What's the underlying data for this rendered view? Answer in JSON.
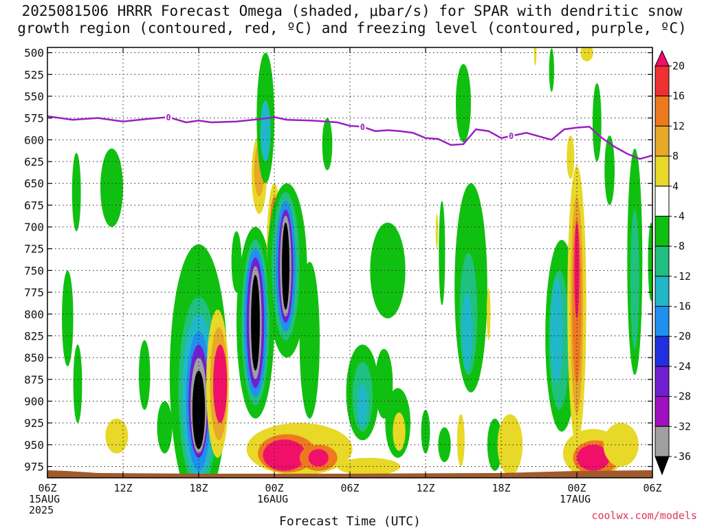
{
  "title_lines": [
    "2025081506 HRRR Forecast Omega (shaded, μbar/s) for SPAR with dendritic snow",
    "growth region (contoured, red, ºC) and freezing level (contoured, purple, ºC)"
  ],
  "credit": "coolwx.com/models",
  "chart_data": {
    "type": "heatmap",
    "title": "2025081506 HRRR Forecast Omega (shaded, μbar/s) for SPAR with dendritic snow growth region (contoured, red, ºC) and freezing level (contoured, purple, ºC)",
    "xlabel": "Forecast Time (UTC)",
    "ylabel": "",
    "x_range_hours": [
      0,
      48
    ],
    "y_range_hPa": [
      988,
      494
    ],
    "y_ticks": [
      500,
      525,
      550,
      575,
      600,
      625,
      650,
      675,
      700,
      725,
      750,
      775,
      800,
      825,
      850,
      875,
      900,
      925,
      950,
      975
    ],
    "x_ticks": [
      {
        "hour": 0,
        "lines": [
          "06Z",
          "15AUG",
          "2025"
        ]
      },
      {
        "hour": 6,
        "lines": [
          "12Z"
        ]
      },
      {
        "hour": 12,
        "lines": [
          "18Z"
        ]
      },
      {
        "hour": 18,
        "lines": [
          "00Z",
          "16AUG"
        ]
      },
      {
        "hour": 24,
        "lines": [
          "06Z"
        ]
      },
      {
        "hour": 30,
        "lines": [
          "12Z"
        ]
      },
      {
        "hour": 36,
        "lines": [
          "18Z"
        ]
      },
      {
        "hour": 42,
        "lines": [
          "00Z",
          "17AUG"
        ]
      },
      {
        "hour": 48,
        "lines": [
          "06Z"
        ]
      }
    ],
    "grid": true,
    "colorbar": {
      "labels": [
        20,
        16,
        12,
        8,
        4,
        -4,
        -8,
        -12,
        -16,
        -20,
        -24,
        -28,
        -32,
        -36
      ],
      "colors": [
        "#f0106a",
        "#f03030",
        "#ee7a20",
        "#e8a828",
        "#e8d828",
        "#ffffff",
        "#10c010",
        "#20c080",
        "#20b8c8",
        "#2090f0",
        "#2030e0",
        "#7020d0",
        "#a010c0",
        "#a0a0a0",
        "#000000"
      ]
    },
    "freezing_level": {
      "label": "0",
      "color": "#9a1fc0",
      "points": [
        [
          0,
          573
        ],
        [
          2,
          577
        ],
        [
          4,
          575
        ],
        [
          6,
          579
        ],
        [
          8,
          576
        ],
        [
          9.6,
          574
        ],
        [
          11,
          580
        ],
        [
          12,
          578
        ],
        [
          13,
          580
        ],
        [
          15,
          579
        ],
        [
          17,
          576
        ],
        [
          18,
          574
        ],
        [
          19,
          577
        ],
        [
          21,
          578
        ],
        [
          23,
          580
        ],
        [
          24,
          584
        ],
        [
          25,
          585
        ],
        [
          26,
          590
        ],
        [
          27,
          589
        ],
        [
          28,
          590
        ],
        [
          29,
          592
        ],
        [
          30,
          598
        ],
        [
          31,
          599
        ],
        [
          32,
          606
        ],
        [
          33,
          605
        ],
        [
          34,
          588
        ],
        [
          35,
          590
        ],
        [
          36,
          598
        ],
        [
          37,
          595
        ],
        [
          38,
          592
        ],
        [
          39,
          596
        ],
        [
          40,
          600
        ],
        [
          41,
          588
        ],
        [
          42,
          586
        ],
        [
          43,
          585
        ],
        [
          44,
          598
        ],
        [
          45,
          608
        ],
        [
          46,
          616
        ],
        [
          47,
          622
        ],
        [
          48,
          618
        ]
      ],
      "label_hours": [
        9.6,
        25,
        36.8
      ]
    },
    "surface_color": "#a05a2c",
    "omega_features": [
      {
        "level": -4,
        "t": 2.3,
        "p": 660,
        "rt": 0.35,
        "rp": 45
      },
      {
        "level": -4,
        "t": 1.6,
        "p": 805,
        "rt": 0.45,
        "rp": 55
      },
      {
        "level": -4,
        "t": 2.4,
        "p": 880,
        "rt": 0.35,
        "rp": 45
      },
      {
        "level": -4,
        "t": 5.1,
        "p": 655,
        "rt": 0.9,
        "rp": 45
      },
      {
        "level": 4,
        "t": 5.5,
        "p": 940,
        "rt": 0.9,
        "rp": 20
      },
      {
        "level": -4,
        "t": 7.7,
        "p": 870,
        "rt": 0.45,
        "rp": 40
      },
      {
        "level": -4,
        "t": 9.3,
        "p": 930,
        "rt": 0.6,
        "rp": 30
      },
      {
        "level": -4,
        "t": 12.0,
        "p": 870,
        "rt": 2.3,
        "rp": 150
      },
      {
        "level": -8,
        "t": 12.0,
        "p": 890,
        "rt": 1.6,
        "rp": 110
      },
      {
        "level": -12,
        "t": 12.0,
        "p": 895,
        "rt": 1.3,
        "rp": 95
      },
      {
        "level": -16,
        "t": 12.0,
        "p": 900,
        "rt": 1.0,
        "rp": 80
      },
      {
        "level": -24,
        "t": 12.0,
        "p": 900,
        "rt": 0.8,
        "rp": 65
      },
      {
        "level": -32,
        "t": 12.0,
        "p": 905,
        "rt": 0.65,
        "rp": 55
      },
      {
        "level": -36,
        "t": 12.0,
        "p": 910,
        "rt": 0.5,
        "rp": 45
      },
      {
        "level": 4,
        "t": 13.5,
        "p": 880,
        "rt": 0.9,
        "rp": 85
      },
      {
        "level": 8,
        "t": 13.6,
        "p": 880,
        "rt": 0.7,
        "rp": 65
      },
      {
        "level": 20,
        "t": 13.7,
        "p": 880,
        "rt": 0.55,
        "rp": 45
      },
      {
        "level": -4,
        "t": 15.0,
        "p": 740,
        "rt": 0.4,
        "rp": 35
      },
      {
        "level": -4,
        "t": 16.5,
        "p": 810,
        "rt": 1.5,
        "rp": 110
      },
      {
        "level": -8,
        "t": 16.5,
        "p": 810,
        "rt": 1.1,
        "rp": 95
      },
      {
        "level": -16,
        "t": 16.5,
        "p": 810,
        "rt": 0.9,
        "rp": 85
      },
      {
        "level": -24,
        "t": 16.5,
        "p": 810,
        "rt": 0.7,
        "rp": 75
      },
      {
        "level": -32,
        "t": 16.5,
        "p": 810,
        "rt": 0.5,
        "rp": 65
      },
      {
        "level": -36,
        "t": 16.5,
        "p": 810,
        "rt": 0.35,
        "rp": 55
      },
      {
        "level": 4,
        "t": 16.8,
        "p": 640,
        "rt": 0.6,
        "rp": 45
      },
      {
        "level": 8,
        "t": 16.8,
        "p": 635,
        "rt": 0.4,
        "rp": 30
      },
      {
        "level": -4,
        "t": 17.3,
        "p": 575,
        "rt": 0.7,
        "rp": 75
      },
      {
        "level": -12,
        "t": 17.3,
        "p": 590,
        "rt": 0.4,
        "rp": 35
      },
      {
        "level": 4,
        "t": 18.0,
        "p": 725,
        "rt": 0.6,
        "rp": 75
      },
      {
        "level": 12,
        "t": 18.0,
        "p": 720,
        "rt": 0.4,
        "rp": 55
      },
      {
        "level": 20,
        "t": 18.0,
        "p": 720,
        "rt": 0.25,
        "rp": 40
      },
      {
        "level": -4,
        "t": 19.0,
        "p": 750,
        "rt": 1.6,
        "rp": 100
      },
      {
        "level": -8,
        "t": 18.9,
        "p": 745,
        "rt": 1.1,
        "rp": 85
      },
      {
        "level": -16,
        "t": 18.9,
        "p": 745,
        "rt": 0.8,
        "rp": 75
      },
      {
        "level": -24,
        "t": 18.9,
        "p": 745,
        "rt": 0.6,
        "rp": 65
      },
      {
        "level": -32,
        "t": 18.9,
        "p": 745,
        "rt": 0.45,
        "rp": 58
      },
      {
        "level": -36,
        "t": 18.9,
        "p": 745,
        "rt": 0.3,
        "rp": 50
      },
      {
        "level": -4,
        "t": 20.8,
        "p": 830,
        "rt": 0.8,
        "rp": 90
      },
      {
        "level": 4,
        "t": 20.0,
        "p": 955,
        "rt": 4.2,
        "rp": 30
      },
      {
        "level": 12,
        "t": 19.0,
        "p": 960,
        "rt": 2.3,
        "rp": 22
      },
      {
        "level": 20,
        "t": 18.8,
        "p": 962,
        "rt": 1.7,
        "rp": 18
      },
      {
        "level": 12,
        "t": 21.5,
        "p": 965,
        "rt": 1.5,
        "rp": 15
      },
      {
        "level": 20,
        "t": 21.5,
        "p": 965,
        "rt": 0.8,
        "rp": 10
      },
      {
        "level": 4,
        "t": 25.5,
        "p": 975,
        "rt": 2.5,
        "rp": 10
      },
      {
        "level": -4,
        "t": 22.2,
        "p": 605,
        "rt": 0.4,
        "rp": 30
      },
      {
        "level": -4,
        "t": 25.0,
        "p": 890,
        "rt": 1.3,
        "rp": 55
      },
      {
        "level": -8,
        "t": 25.0,
        "p": 895,
        "rt": 0.8,
        "rp": 40
      },
      {
        "level": -12,
        "t": 25.0,
        "p": 905,
        "rt": 0.4,
        "rp": 25
      },
      {
        "level": -4,
        "t": 27.0,
        "p": 750,
        "rt": 1.4,
        "rp": 55
      },
      {
        "level": -4,
        "t": 26.7,
        "p": 880,
        "rt": 0.7,
        "rp": 40
      },
      {
        "level": -4,
        "t": 27.8,
        "p": 925,
        "rt": 1.0,
        "rp": 40
      },
      {
        "level": 4,
        "t": 27.9,
        "p": 935,
        "rt": 0.5,
        "rp": 22
      },
      {
        "level": -4,
        "t": 30.0,
        "p": 935,
        "rt": 0.35,
        "rp": 25
      },
      {
        "level": 4,
        "t": 30.9,
        "p": 705,
        "rt": 0.1,
        "rp": 20
      },
      {
        "level": -4,
        "t": 31.3,
        "p": 730,
        "rt": 0.25,
        "rp": 60
      },
      {
        "level": -4,
        "t": 31.5,
        "p": 950,
        "rt": 0.5,
        "rp": 20
      },
      {
        "level": -4,
        "t": 33.0,
        "p": 558,
        "rt": 0.6,
        "rp": 45
      },
      {
        "level": -4,
        "t": 33.6,
        "p": 770,
        "rt": 1.3,
        "rp": 120
      },
      {
        "level": -8,
        "t": 33.4,
        "p": 800,
        "rt": 0.7,
        "rp": 70
      },
      {
        "level": -12,
        "t": 33.3,
        "p": 820,
        "rt": 0.4,
        "rp": 45
      },
      {
        "level": 4,
        "t": 32.8,
        "p": 945,
        "rt": 0.3,
        "rp": 30
      },
      {
        "level": 4,
        "t": 35.0,
        "p": 800,
        "rt": 0.15,
        "rp": 30
      },
      {
        "level": -4,
        "t": 35.5,
        "p": 950,
        "rt": 0.6,
        "rp": 30
      },
      {
        "level": 4,
        "t": 36.7,
        "p": 950,
        "rt": 1.0,
        "rp": 35
      },
      {
        "level": 4,
        "t": 38.7,
        "p": 500,
        "rt": 0.1,
        "rp": 15
      },
      {
        "level": -4,
        "t": 40.0,
        "p": 520,
        "rt": 0.2,
        "rp": 25
      },
      {
        "level": -4,
        "t": 40.8,
        "p": 825,
        "rt": 1.3,
        "rp": 110
      },
      {
        "level": -8,
        "t": 40.6,
        "p": 830,
        "rt": 0.8,
        "rp": 80
      },
      {
        "level": -12,
        "t": 40.4,
        "p": 820,
        "rt": 0.5,
        "rp": 60
      },
      {
        "level": 4,
        "t": 41.5,
        "p": 620,
        "rt": 0.3,
        "rp": 25
      },
      {
        "level": 4,
        "t": 42.0,
        "p": 790,
        "rt": 0.75,
        "rp": 160
      },
      {
        "level": 8,
        "t": 42.0,
        "p": 790,
        "rt": 0.5,
        "rp": 125
      },
      {
        "level": 12,
        "t": 42.0,
        "p": 785,
        "rt": 0.35,
        "rp": 95
      },
      {
        "level": 20,
        "t": 42.0,
        "p": 750,
        "rt": 0.2,
        "rp": 55
      },
      {
        "level": 4,
        "t": 42.8,
        "p": 500,
        "rt": 0.5,
        "rp": 10
      },
      {
        "level": -4,
        "t": 43.6,
        "p": 580,
        "rt": 0.35,
        "rp": 45
      },
      {
        "level": 4,
        "t": 43.3,
        "p": 960,
        "rt": 2.4,
        "rp": 28
      },
      {
        "level": 12,
        "t": 43.5,
        "p": 965,
        "rt": 1.8,
        "rp": 20
      },
      {
        "level": 20,
        "t": 43.3,
        "p": 965,
        "rt": 1.3,
        "rp": 15
      },
      {
        "level": -4,
        "t": 44.6,
        "p": 635,
        "rt": 0.4,
        "rp": 40
      },
      {
        "level": -4,
        "t": 46.6,
        "p": 740,
        "rt": 0.6,
        "rp": 130
      },
      {
        "level": -8,
        "t": 46.6,
        "p": 760,
        "rt": 0.35,
        "rp": 80
      },
      {
        "level": -4,
        "t": 47.9,
        "p": 740,
        "rt": 0.25,
        "rp": 45
      },
      {
        "level": 4,
        "t": 45.5,
        "p": 950,
        "rt": 1.4,
        "rp": 25
      }
    ]
  }
}
